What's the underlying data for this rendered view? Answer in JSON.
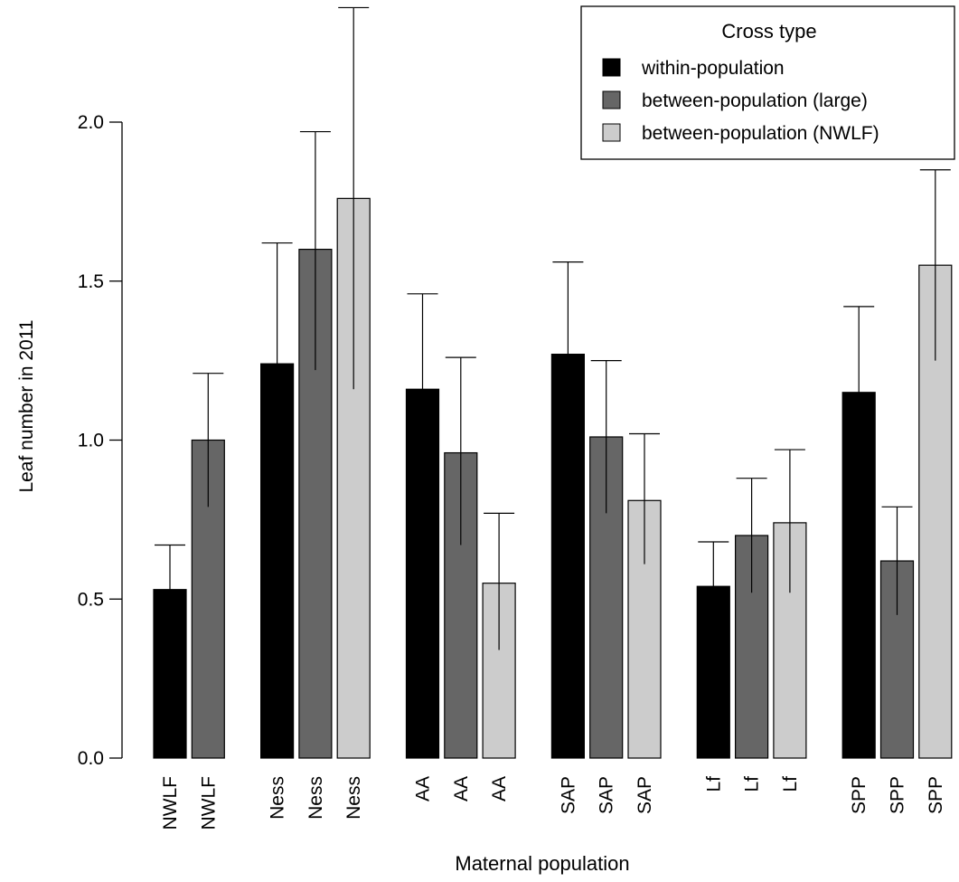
{
  "chart_data": {
    "type": "bar",
    "ylabel": "Leaf number in 2011",
    "xlabel": "Maternal population",
    "ylim": [
      0,
      2.0
    ],
    "yticks": [
      "0.0",
      "0.5",
      "1.0",
      "1.5",
      "2.0"
    ],
    "legend": {
      "title": "Cross type",
      "placement": "top-right",
      "entries": [
        {
          "label": "within-population",
          "color": "#000000"
        },
        {
          "label": "between-population (large)",
          "color": "#666666"
        },
        {
          "label": "between-population (NWLF)",
          "color": "#cccccc"
        }
      ]
    },
    "bars": [
      {
        "label": "NWLF",
        "group": 0,
        "cross": 0,
        "value": 0.53,
        "lower": 0.53,
        "upper": 0.67
      },
      {
        "label": "NWLF",
        "group": 0,
        "cross": 1,
        "value": 1.0,
        "lower": 0.79,
        "upper": 1.21
      },
      {
        "label": "Ness",
        "group": 1,
        "cross": 0,
        "value": 1.24,
        "lower": 1.24,
        "upper": 1.62
      },
      {
        "label": "Ness",
        "group": 1,
        "cross": 1,
        "value": 1.6,
        "lower": 1.22,
        "upper": 1.97
      },
      {
        "label": "Ness",
        "group": 1,
        "cross": 2,
        "value": 1.76,
        "lower": 1.16,
        "upper": 2.36
      },
      {
        "label": "AA",
        "group": 2,
        "cross": 0,
        "value": 1.16,
        "lower": 1.16,
        "upper": 1.46
      },
      {
        "label": "AA",
        "group": 2,
        "cross": 1,
        "value": 0.96,
        "lower": 0.67,
        "upper": 1.26
      },
      {
        "label": "AA",
        "group": 2,
        "cross": 2,
        "value": 0.55,
        "lower": 0.34,
        "upper": 0.77
      },
      {
        "label": "SAP",
        "group": 3,
        "cross": 0,
        "value": 1.27,
        "lower": 1.27,
        "upper": 1.56
      },
      {
        "label": "SAP",
        "group": 3,
        "cross": 1,
        "value": 1.01,
        "lower": 0.77,
        "upper": 1.25
      },
      {
        "label": "SAP",
        "group": 3,
        "cross": 2,
        "value": 0.81,
        "lower": 0.61,
        "upper": 1.02
      },
      {
        "label": "Lf",
        "group": 4,
        "cross": 0,
        "value": 0.54,
        "lower": 0.54,
        "upper": 0.68
      },
      {
        "label": "Lf",
        "group": 4,
        "cross": 1,
        "value": 0.7,
        "lower": 0.52,
        "upper": 0.88
      },
      {
        "label": "Lf",
        "group": 4,
        "cross": 2,
        "value": 0.74,
        "lower": 0.52,
        "upper": 0.97
      },
      {
        "label": "SPP",
        "group": 5,
        "cross": 0,
        "value": 1.15,
        "lower": 1.15,
        "upper": 1.42
      },
      {
        "label": "SPP",
        "group": 5,
        "cross": 1,
        "value": 0.62,
        "lower": 0.45,
        "upper": 0.79
      },
      {
        "label": "SPP",
        "group": 5,
        "cross": 2,
        "value": 1.55,
        "lower": 1.25,
        "upper": 1.85
      }
    ]
  }
}
